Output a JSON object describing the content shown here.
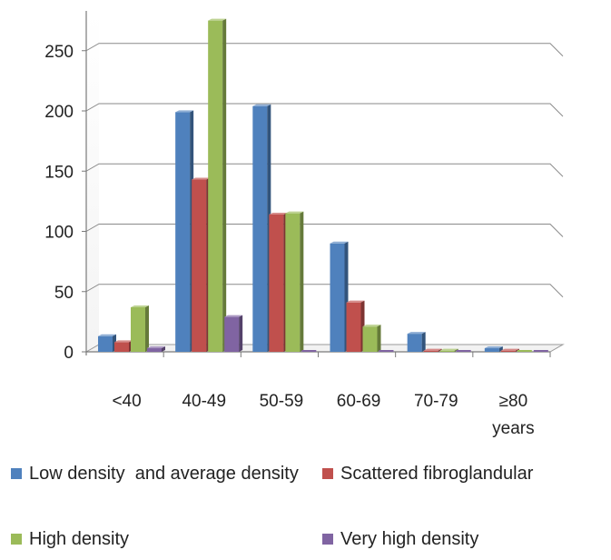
{
  "chart_data": {
    "type": "bar",
    "categories": [
      "<40",
      "40-49",
      "50-59",
      "60-69",
      "70-79",
      "≥80 years"
    ],
    "series": [
      {
        "name": "Low density  and average density",
        "values": [
          13,
          199,
          204,
          90,
          15,
          3
        ],
        "color": "#4F81BD"
      },
      {
        "name": "Scattered fibroglandular",
        "values": [
          8,
          143,
          114,
          41,
          1,
          1
        ],
        "color": "#C0504D"
      },
      {
        "name": "High density",
        "values": [
          37,
          275,
          115,
          21,
          1,
          0
        ],
        "color": "#9BBB59"
      },
      {
        "name": "Very high density",
        "values": [
          3,
          29,
          0,
          0,
          0,
          0
        ],
        "color": "#8064A2"
      }
    ],
    "yticks": [
      0,
      50,
      100,
      150,
      200,
      250
    ],
    "ylim": [
      0,
      280
    ],
    "grid": true,
    "legend_position": "bottom"
  }
}
